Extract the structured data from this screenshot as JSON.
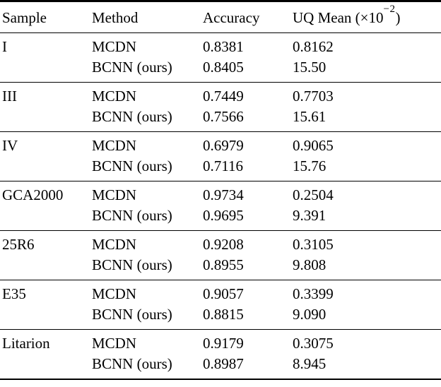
{
  "colors": {
    "background": "#ffffff",
    "text": "#000000",
    "rule": "#000000"
  },
  "table": {
    "headers": {
      "sample": "Sample",
      "method": "Method",
      "accuracy": "Accuracy",
      "uq_mean_prefix": "UQ Mean (×10",
      "uq_mean_sup": "−2",
      "uq_mean_suffix": ")"
    },
    "groups": [
      {
        "sample": "I",
        "rows": [
          {
            "method": "MCDN",
            "accuracy": "0.8381",
            "uq_mean": "0.8162"
          },
          {
            "method": "BCNN (ours)",
            "accuracy": "0.8405",
            "uq_mean": "15.50"
          }
        ]
      },
      {
        "sample": "III",
        "rows": [
          {
            "method": "MCDN",
            "accuracy": "0.7449",
            "uq_mean": "0.7703"
          },
          {
            "method": "BCNN (ours)",
            "accuracy": "0.7566",
            "uq_mean": "15.61"
          }
        ]
      },
      {
        "sample": "IV",
        "rows": [
          {
            "method": "MCDN",
            "accuracy": "0.6979",
            "uq_mean": "0.9065"
          },
          {
            "method": "BCNN (ours)",
            "accuracy": "0.7116",
            "uq_mean": "15.76"
          }
        ]
      },
      {
        "sample": "GCA2000",
        "rows": [
          {
            "method": "MCDN",
            "accuracy": "0.9734",
            "uq_mean": "0.2504"
          },
          {
            "method": "BCNN (ours)",
            "accuracy": "0.9695",
            "uq_mean": "9.391"
          }
        ]
      },
      {
        "sample": "25R6",
        "rows": [
          {
            "method": "MCDN",
            "accuracy": "0.9208",
            "uq_mean": "0.3105"
          },
          {
            "method": "BCNN (ours)",
            "accuracy": "0.8955",
            "uq_mean": "9.808"
          }
        ]
      },
      {
        "sample": "E35",
        "rows": [
          {
            "method": "MCDN",
            "accuracy": "0.9057",
            "uq_mean": "0.3399"
          },
          {
            "method": "BCNN (ours)",
            "accuracy": "0.8815",
            "uq_mean": "9.090"
          }
        ]
      },
      {
        "sample": "Litarion",
        "rows": [
          {
            "method": "MCDN",
            "accuracy": "0.9179",
            "uq_mean": "0.3075"
          },
          {
            "method": "BCNN (ours)",
            "accuracy": "0.8987",
            "uq_mean": "8.945"
          }
        ]
      }
    ]
  }
}
